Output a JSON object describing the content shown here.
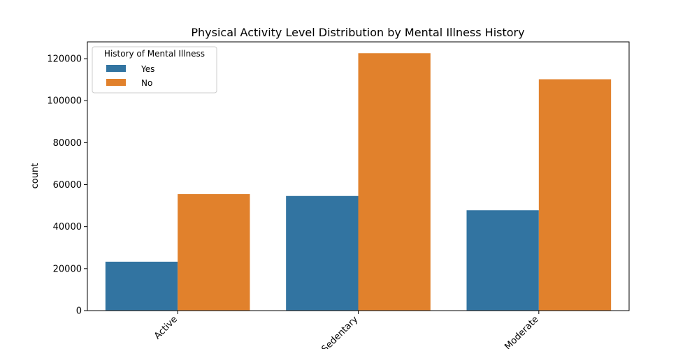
{
  "chart_data": {
    "type": "bar",
    "title": "Physical Activity Level Distribution by Mental Illness History",
    "xlabel": "",
    "ylabel": "count",
    "categories": [
      "Active",
      "Sedentary",
      "Moderate"
    ],
    "series": [
      {
        "name": "Yes",
        "values": [
          23300,
          54600,
          47800
        ],
        "color": "#3274a1"
      },
      {
        "name": "No",
        "values": [
          55500,
          122600,
          110200
        ],
        "color": "#e1812c"
      }
    ],
    "ylim": [
      0,
      128000
    ],
    "yticks": [
      0,
      20000,
      40000,
      60000,
      80000,
      100000,
      120000
    ],
    "legend": {
      "title": "History of Mental Illness",
      "placement": "top-left"
    },
    "grid": false
  }
}
